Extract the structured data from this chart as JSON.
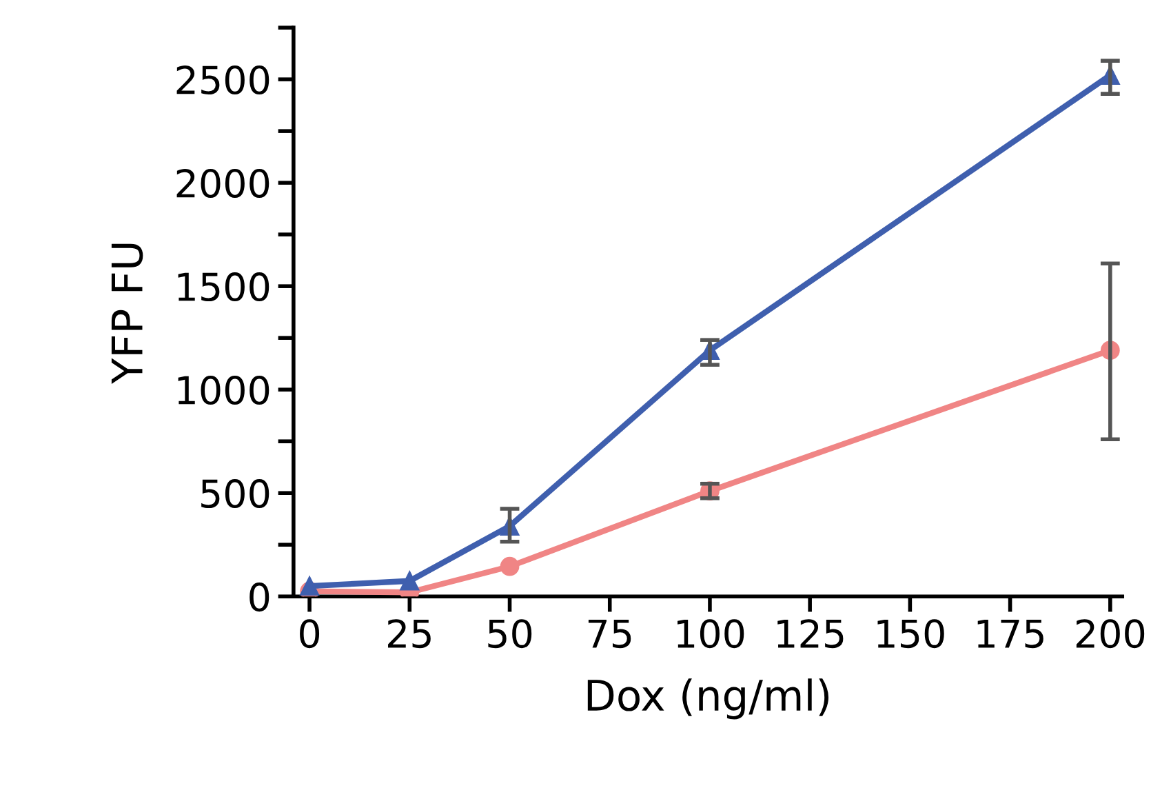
{
  "chart_data": {
    "type": "line",
    "xlabel": "Dox (ng/ml)",
    "ylabel": "YFP FU",
    "x": [
      0,
      25,
      50,
      100,
      200
    ],
    "series": [
      {
        "color": "#f08585",
        "marker": "circle",
        "values": [
          25,
          20,
          145,
          510,
          1190
        ],
        "errors": [
          null,
          null,
          null,
          [
            475,
            545
          ],
          [
            760,
            1610
          ]
        ]
      },
      {
        "color": "#3f5fae",
        "marker": "triangle",
        "values": [
          50,
          75,
          340,
          1190,
          2520
        ],
        "errors": [
          null,
          null,
          [
            265,
            424
          ],
          [
            1120,
            1240
          ],
          [
            2430,
            2590
          ]
        ]
      }
    ],
    "xlim": [
      -4,
      203
    ],
    "xticks": [
      0,
      25,
      50,
      75,
      100,
      125,
      150,
      175,
      200
    ],
    "ylim": [
      0,
      2750
    ],
    "yticks": [
      0,
      {
        "value": 250,
        "label": null
      },
      500,
      {
        "value": 750,
        "label": null
      },
      1000,
      {
        "value": 1250,
        "label": null
      },
      1500,
      {
        "value": 1750,
        "label": null
      },
      2000,
      {
        "value": 2250,
        "label": null
      },
      2500,
      {
        "value": 2750,
        "label": null
      }
    ],
    "grid": false,
    "legend": false
  }
}
